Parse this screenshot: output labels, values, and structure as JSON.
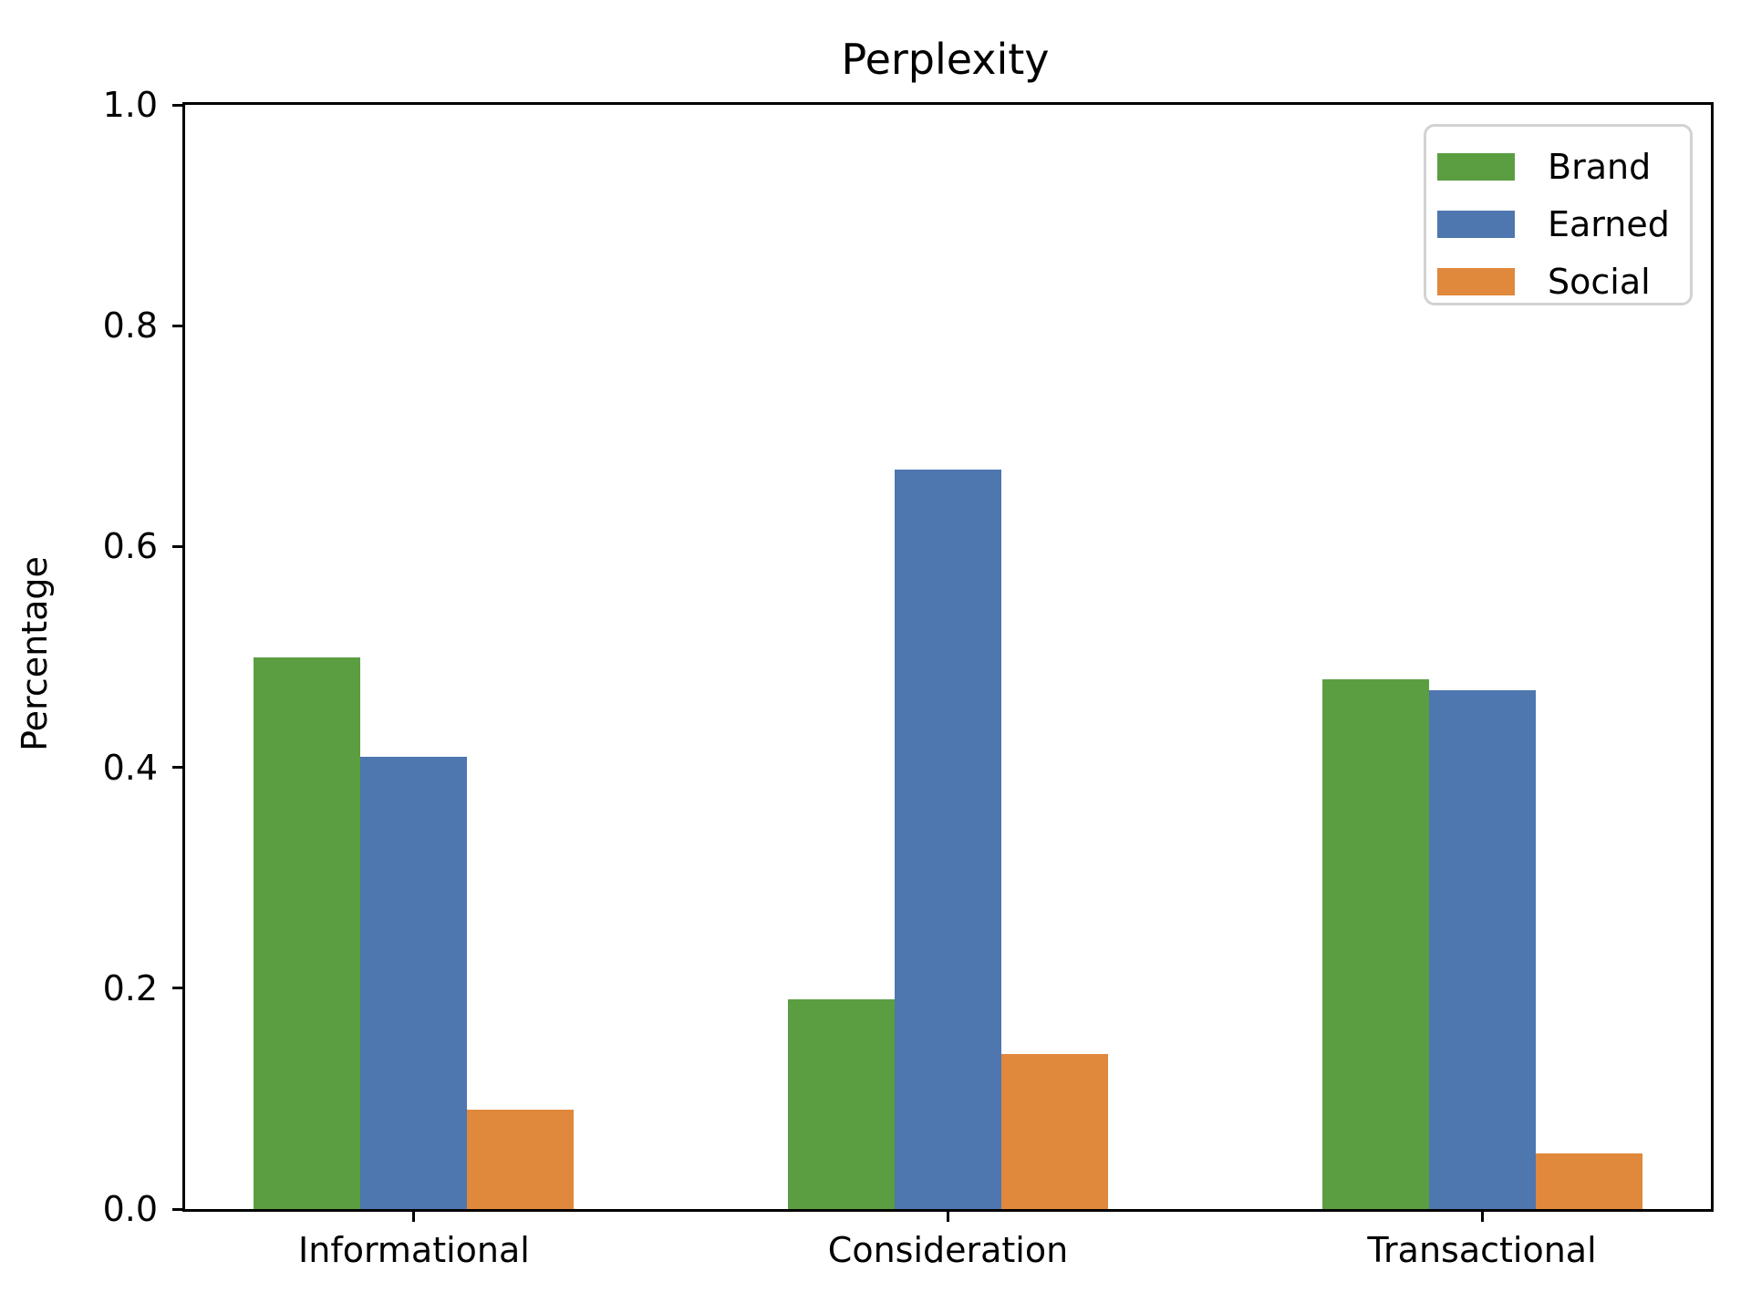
{
  "chart_data": {
    "type": "bar",
    "title": "Perplexity",
    "xlabel": "",
    "ylabel": "Percentage",
    "categories": [
      "Informational",
      "Consideration",
      "Transactional"
    ],
    "series": [
      {
        "name": "Brand",
        "color": "#5a9e41",
        "values": [
          0.5,
          0.19,
          0.48
        ]
      },
      {
        "name": "Earned",
        "color": "#4e76af",
        "values": [
          0.41,
          0.67,
          0.47
        ]
      },
      {
        "name": "Social",
        "color": "#e0883c",
        "values": [
          0.09,
          0.14,
          0.05
        ]
      }
    ],
    "ylim": [
      0.0,
      1.0
    ],
    "yticks": [
      0.0,
      0.2,
      0.4,
      0.6,
      0.8,
      1.0
    ],
    "grid": false,
    "legend_position": "upper right",
    "colors": {
      "axis": "#000000",
      "legend_border": "#d2d2d2",
      "background": "#ffffff"
    }
  }
}
